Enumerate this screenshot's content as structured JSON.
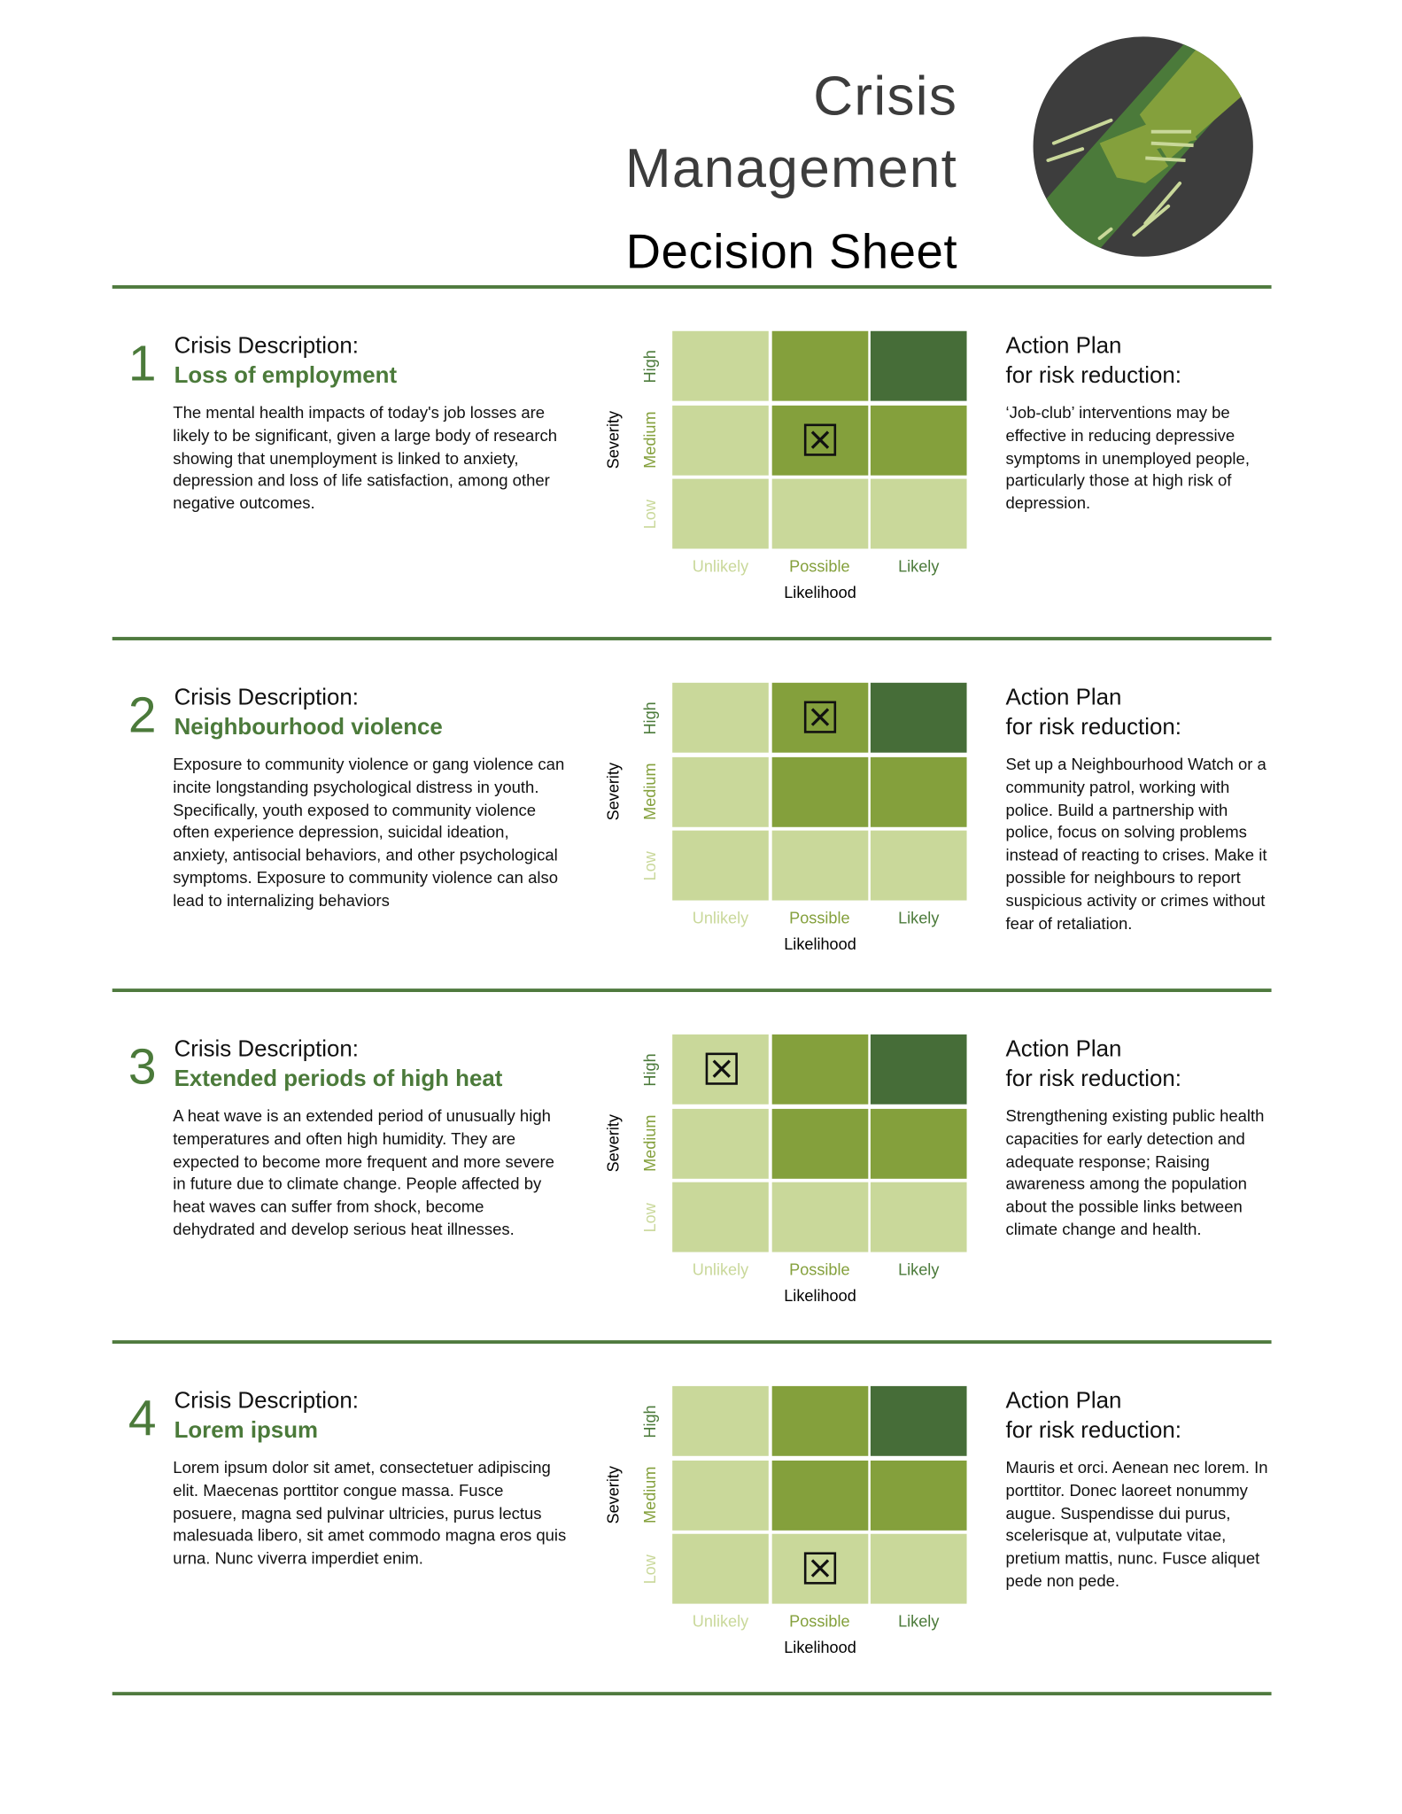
{
  "header": {
    "title_lines": [
      "Crisis",
      "Management"
    ],
    "subtitle": "Decision Sheet"
  },
  "labels": {
    "description": "Crisis Description:",
    "action_line1": "Action Plan",
    "action_line2": "for risk reduction:"
  },
  "matrix": {
    "severity_label": "Severity",
    "likelihood_label": "Likelihood",
    "severity_levels": [
      "High",
      "Medium",
      "Low"
    ],
    "likelihood_levels": [
      "Unlikely",
      "Possible",
      "Likely"
    ]
  },
  "sections": [
    {
      "number": "1",
      "title": "Loss of employment",
      "description": "The mental health impacts of today's job losses are likely to be significant, given a large body of research showing that unemployment is linked to anxiety, depression and loss of life satisfaction, among other negative outcomes.",
      "marked": {
        "severity": "Medium",
        "likelihood": "Possible"
      },
      "action_plan": "‘Job-club’ interventions may be effective in reducing depressive symptoms in unemployed people, particularly those at high risk of depression."
    },
    {
      "number": "2",
      "title": "Neighbourhood violence",
      "description": "Exposure to community violence or gang violence can incite longstanding psychological distress in youth. Specifically, youth exposed to community violence often experience depression, suicidal ideation, anxiety, antisocial behaviors, and other psychological symptoms. Exposure to community violence can also lead to internalizing behaviors",
      "marked": {
        "severity": "High",
        "likelihood": "Possible"
      },
      "action_plan": "Set up a Neighbourhood Watch or a community patrol, working with police. Build a partnership with police, focus on solving problems instead of reacting to crises. Make it possible for neighbours to report suspicious activity or crimes without fear of retaliation."
    },
    {
      "number": "3",
      "title": "Extended periods of high heat",
      "description": "A heat wave is an extended period of unusually high temperatures and often high humidity. They are expected to become more frequent and more severe in future due to climate change. People affected by heat waves can suffer from shock, become dehydrated and develop serious heat illnesses.",
      "marked": {
        "severity": "High",
        "likelihood": "Unlikely"
      },
      "action_plan": "Strengthening existing public health capacities for early detection and adequate response; Raising awareness among the population about the possible links between climate change and health."
    },
    {
      "number": "4",
      "title": "Lorem ipsum",
      "description": "Lorem ipsum dolor sit amet, consectetuer adipiscing elit. Maecenas porttitor congue massa. Fusce posuere, magna sed pulvinar ultricies, purus lectus malesuada libero, sit amet commodo magna eros quis urna. Nunc viverra imperdiet enim.",
      "marked": {
        "severity": "Low",
        "likelihood": "Possible"
      },
      "action_plan": "Mauris et orci. Aenean nec lorem. In porttitor. Donec laoreet nonummy augue. Suspendisse dui purus, scelerisque at, vulputate vitae, pretium mattis, nunc. Fusce aliquet pede non pede."
    }
  ]
}
